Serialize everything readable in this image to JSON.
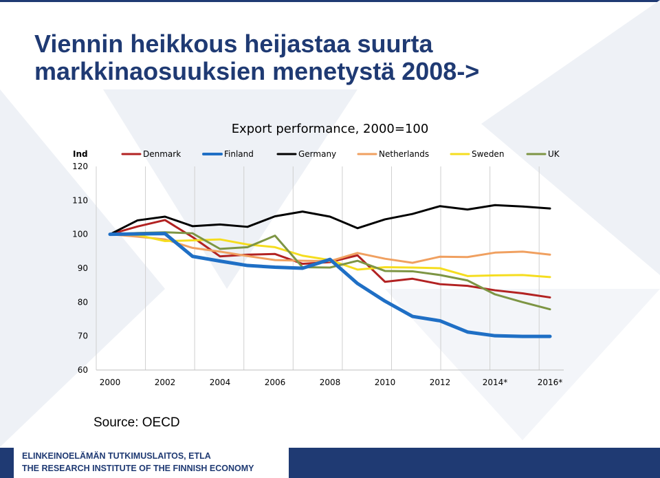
{
  "slide": {
    "title_line1": "Viennin heikkous heijastaa suurta",
    "title_line2": "markkinaosuuksien menetystä 2008->",
    "source": "Source: OECD",
    "footer_line1": "ELINKEINOELÄMÄN TUTKIMUSLAITOS, ETLA",
    "footer_line2": "THE RESEARCH INSTITUTE OF THE FINNISH ECONOMY"
  },
  "colors": {
    "brand": "#1f3a73",
    "background_shapes": "#eef1f6"
  },
  "chart_data": {
    "type": "line",
    "title": "Export performance, 2000=100",
    "ylabel": "Ind",
    "ylim": [
      60,
      120
    ],
    "yticks": [
      60,
      70,
      80,
      90,
      100,
      110,
      120
    ],
    "x": [
      2000,
      2001,
      2002,
      2003,
      2004,
      2005,
      2006,
      2007,
      2008,
      2009,
      2010,
      2011,
      2012,
      2013,
      2014,
      2015,
      2016
    ],
    "xtick_labels": [
      "2000",
      "2002",
      "2004",
      "2006",
      "2008",
      "2010",
      "2012",
      "2014*",
      "2016*"
    ],
    "grid": "vertical",
    "legend": "top",
    "series": [
      {
        "name": "Denmark",
        "color": "#b22222",
        "width": 3,
        "values": [
          100,
          102.3,
          104.2,
          99.2,
          93.5,
          94.0,
          94.2,
          91.3,
          91.8,
          93.8,
          86.0,
          86.9,
          85.3,
          84.8,
          83.5,
          82.6,
          81.4
        ]
      },
      {
        "name": "Finland",
        "color": "#1f6fc5",
        "width": 5,
        "values": [
          100,
          100.1,
          100.2,
          93.5,
          92.1,
          90.8,
          90.3,
          90.0,
          92.6,
          85.5,
          80.3,
          75.8,
          74.5,
          71.2,
          70.1,
          69.9,
          69.9
        ]
      },
      {
        "name": "Germany",
        "color": "#000000",
        "width": 3,
        "values": [
          100,
          104.1,
          105.2,
          102.4,
          102.9,
          102.2,
          105.3,
          106.7,
          105.2,
          101.8,
          104.4,
          106.0,
          108.3,
          107.3,
          108.6,
          108.2,
          107.6
        ]
      },
      {
        "name": "Netherlands",
        "color": "#f0a060",
        "width": 3,
        "values": [
          100,
          99.3,
          98.5,
          96.0,
          94.9,
          93.6,
          92.4,
          92.2,
          92.1,
          94.5,
          92.8,
          91.6,
          93.4,
          93.3,
          94.6,
          94.9,
          94.0
        ]
      },
      {
        "name": "Sweden",
        "color": "#f5dd1f",
        "width": 3,
        "values": [
          100,
          99.8,
          98.0,
          98.2,
          98.5,
          97.0,
          96.2,
          93.7,
          92.4,
          89.6,
          90.3,
          90.2,
          90.0,
          87.7,
          87.9,
          88.0,
          87.4
        ]
      },
      {
        "name": "UK",
        "color": "#7d9544",
        "width": 3,
        "values": [
          100,
          100.4,
          100.6,
          100.3,
          95.7,
          96.2,
          99.6,
          90.3,
          90.2,
          92.2,
          89.2,
          89.1,
          88.0,
          86.4,
          82.3,
          80.0,
          77.9
        ]
      }
    ]
  }
}
